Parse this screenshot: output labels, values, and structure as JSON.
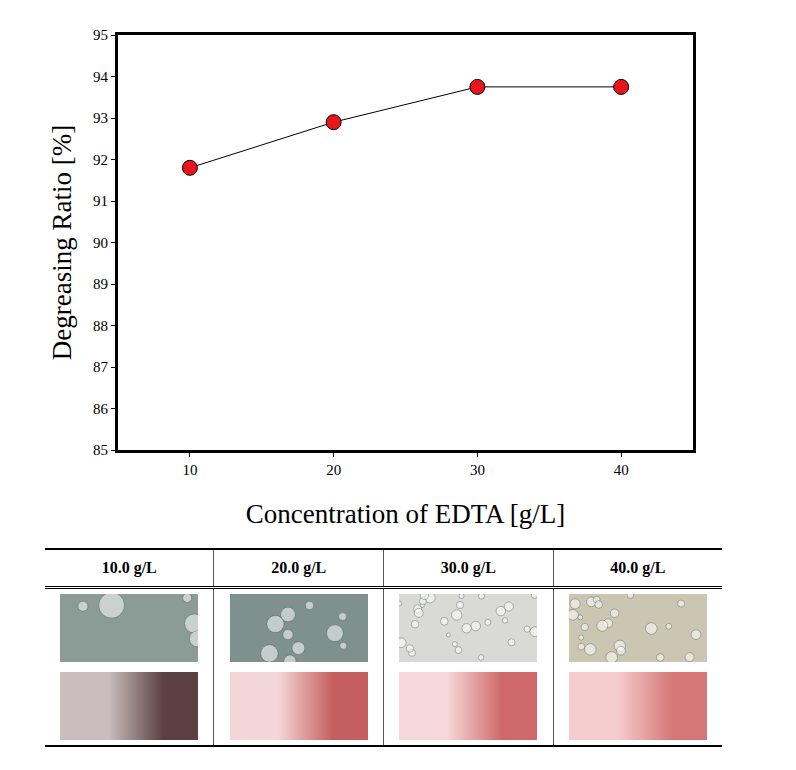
{
  "chart_data": {
    "type": "line",
    "x_label": "Concentration of EDTA [g/L]",
    "y_label": "Degreasing Ratio [%]",
    "x": [
      10,
      20,
      30,
      40
    ],
    "values": [
      91.8,
      92.9,
      93.75,
      93.75
    ],
    "color": "#e8161b",
    "marker": "circle",
    "xlim": [
      5,
      45
    ],
    "xticks": [
      10,
      20,
      30,
      40
    ],
    "ylim": [
      85,
      95
    ],
    "yticks": [
      85,
      86,
      87,
      88,
      89,
      90,
      91,
      92,
      93,
      94,
      95
    ],
    "grid": false
  },
  "table": {
    "header": [
      "10.0 g/L",
      "20.0 g/L",
      "30.0 g/L",
      "40.0 g/L"
    ]
  }
}
